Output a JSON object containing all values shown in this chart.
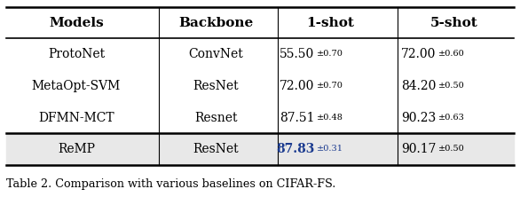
{
  "title": "Table 2. Comparison with various baselines on CIFAR-FS.",
  "headers": [
    "Models",
    "Backbone",
    "1-shot",
    "5-shot"
  ],
  "rows": [
    [
      "ProtoNet",
      "ConvNet",
      "55.50",
      "±0.70",
      "72.00",
      "±0.60"
    ],
    [
      "MetaOpt-SVM",
      "ResNet",
      "72.00",
      "±0.70",
      "84.20",
      "±0.50"
    ],
    [
      "DFMN-MCT",
      "Resnet",
      "87.51",
      "±0.48",
      "90.23",
      "±0.63"
    ]
  ],
  "highlight_row": [
    "ReMP",
    "ResNet",
    "87.83",
    "±0.31",
    "90.17",
    "±0.50"
  ],
  "highlight_color": "#e8e8e8",
  "highlight_1shot_color": "#1a3a8f",
  "normal_color": "#000000",
  "figsize": [
    5.86,
    2.22
  ],
  "dpi": 100
}
